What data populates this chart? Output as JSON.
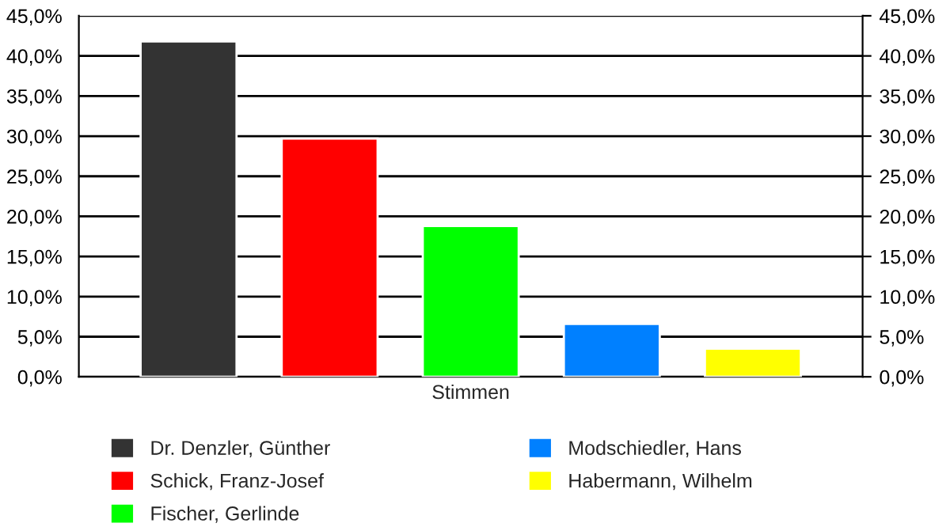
{
  "chart_data": {
    "type": "bar",
    "categories": [
      "Stimmen"
    ],
    "series": [
      {
        "name": "Dr. Denzler, Günther",
        "color": "#333333",
        "values": [
          41.8
        ]
      },
      {
        "name": "Schick, Franz-Josef",
        "color": "#ff0000",
        "values": [
          29.7
        ]
      },
      {
        "name": "Fischer, Gerlinde",
        "color": "#00ff00",
        "values": [
          18.8
        ]
      },
      {
        "name": "Modschiedler, Hans",
        "color": "#0080ff",
        "values": [
          6.6
        ]
      },
      {
        "name": "Habermann, Wilhelm",
        "color": "#ffff00",
        "values": [
          3.5
        ]
      }
    ],
    "ylim": [
      0,
      45
    ],
    "yticks": [
      {
        "value": 0,
        "label": "0,0%"
      },
      {
        "value": 5,
        "label": "5,0%"
      },
      {
        "value": 10,
        "label": "10,0%"
      },
      {
        "value": 15,
        "label": "15,0%"
      },
      {
        "value": 20,
        "label": "20,0%"
      },
      {
        "value": 25,
        "label": "25,0%"
      },
      {
        "value": 30,
        "label": "30,0%"
      },
      {
        "value": 35,
        "label": "35,0%"
      },
      {
        "value": 40,
        "label": "40,0%"
      },
      {
        "value": 45,
        "label": "45,0%"
      }
    ],
    "grid": "y",
    "legend": "bottom"
  }
}
